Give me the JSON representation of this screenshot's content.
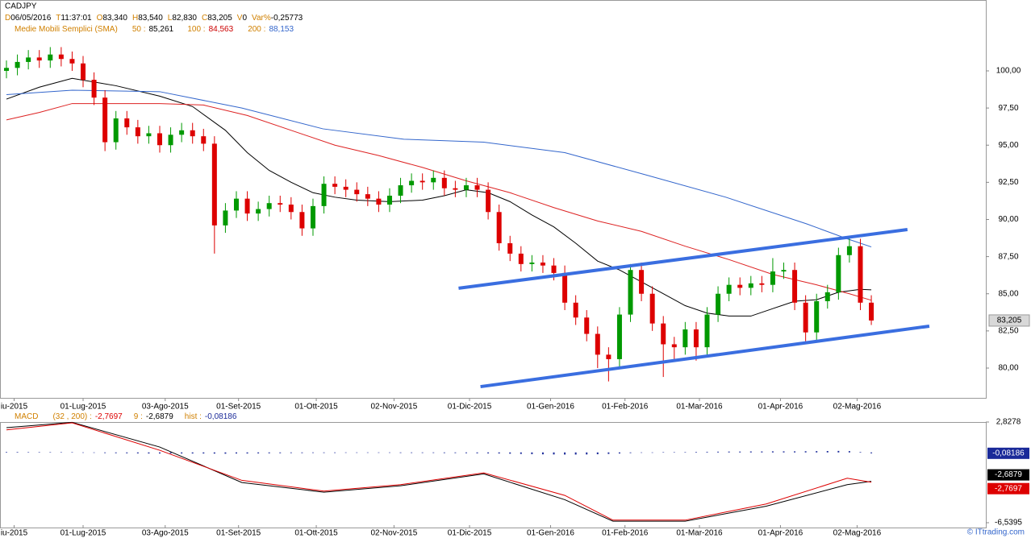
{
  "chart_data": [
    {
      "type": "candlestick",
      "header": {
        "symbol": "CADJPY",
        "quote": [
          {
            "key": "D",
            "value": "06/05/2016"
          },
          {
            "key": "T",
            "value": "11:37:01"
          },
          {
            "key": "O",
            "value": "83,340"
          },
          {
            "key": "H",
            "value": "83,540"
          },
          {
            "key": "L",
            "value": "82,830"
          },
          {
            "key": "C",
            "value": "83,205"
          },
          {
            "key": "V",
            "value": "0"
          },
          {
            "key": "Var%",
            "value": "-0,25773"
          }
        ],
        "sma_title": "Medie Mobili Semplici (SMA)",
        "sma": [
          {
            "key": "50 :",
            "value": "85,261",
            "color": "#000000"
          },
          {
            "key": "100 :",
            "value": "84,563",
            "color": "#cc0000"
          },
          {
            "key": "200 :",
            "value": "88,153",
            "color": "#3366cc"
          }
        ]
      },
      "xlim": [
        -0.59,
        89.46
      ],
      "xticks": [
        {
          "value": 0.7,
          "label": "iu-2015"
        },
        {
          "value": 7.0,
          "label": "01-Lug-2015"
        },
        {
          "value": 14.5,
          "label": "03-Ago-2015"
        },
        {
          "value": 21.2,
          "label": "01-Set-2015"
        },
        {
          "value": 28.3,
          "label": "01-Ott-2015"
        },
        {
          "value": 35.4,
          "label": "02-Nov-2015"
        },
        {
          "value": 42.3,
          "label": "01-Dic-2015"
        },
        {
          "value": 49.7,
          "label": "01-Gen-2016"
        },
        {
          "value": 56.5,
          "label": "01-Feb-2016"
        },
        {
          "value": 63.3,
          "label": "01-Mar-2016"
        },
        {
          "value": 70.7,
          "label": "01-Apr-2016"
        },
        {
          "value": 77.7,
          "label": "02-Mag-2016"
        }
      ],
      "ylim": [
        77.94,
        102.33
      ],
      "yticks": [
        {
          "value": 100,
          "label": "100,00"
        },
        {
          "value": 97.5,
          "label": "97,50"
        },
        {
          "value": 95,
          "label": "95,00"
        },
        {
          "value": 92.5,
          "label": "92,50"
        },
        {
          "value": 90,
          "label": "90,00"
        },
        {
          "value": 87.5,
          "label": "87,50"
        },
        {
          "value": 85,
          "label": "85,00"
        },
        {
          "value": 82.5,
          "label": "82,50"
        },
        {
          "value": 80,
          "label": "80,00"
        }
      ],
      "up_color": "#009900",
      "down_color": "#dd0000",
      "open": [
        100.0,
        100.2,
        100.6,
        100.9,
        100.7,
        101.1,
        100.8,
        100.5,
        99.4,
        98.2,
        95.2,
        96.8,
        96.2,
        95.6,
        95.8,
        95.0,
        95.7,
        96.0,
        95.6,
        95.1,
        89.6,
        90.6,
        91.4,
        90.4,
        90.7,
        91.1,
        91.0,
        90.5,
        89.4,
        90.9,
        92.4,
        92.2,
        92.0,
        91.7,
        91.4,
        91.0,
        91.6,
        92.3,
        92.6,
        92.5,
        92.8,
        92.1,
        92.0,
        92.3,
        92.0,
        90.5,
        88.4,
        87.7,
        87.0,
        87.1,
        86.9,
        86.4,
        84.4,
        83.4,
        82.3,
        80.9,
        80.6,
        83.6,
        86.6,
        85.0,
        83.0,
        81.6,
        81.4,
        82.6,
        81.4,
        83.6,
        85.0,
        85.6,
        85.4,
        85.7,
        85.6,
        86.5,
        86.6,
        84.4,
        82.4,
        84.5,
        85.1,
        87.6,
        88.2,
        84.4
      ],
      "high": [
        100.7,
        101.1,
        101.4,
        101.4,
        101.6,
        101.6,
        101.3,
        101.0,
        99.9,
        98.7,
        97.3,
        97.3,
        96.7,
        96.3,
        96.3,
        96.2,
        96.5,
        96.5,
        96.1,
        95.6,
        91.1,
        91.9,
        91.9,
        91.2,
        91.6,
        91.6,
        91.5,
        91.0,
        91.4,
        92.9,
        92.9,
        92.7,
        92.5,
        92.2,
        91.9,
        92.1,
        92.8,
        93.1,
        93.1,
        93.3,
        93.3,
        92.6,
        92.8,
        92.8,
        92.5,
        91.0,
        88.9,
        88.2,
        87.6,
        87.6,
        87.4,
        86.9,
        84.9,
        83.9,
        82.8,
        81.4,
        84.1,
        87.0,
        87.1,
        85.5,
        83.5,
        82.1,
        83.1,
        83.1,
        84.1,
        85.5,
        86.1,
        86.1,
        86.2,
        86.2,
        87.4,
        87.1,
        87.1,
        84.9,
        85.0,
        85.6,
        88.1,
        88.7,
        88.7,
        84.9
      ],
      "low": [
        99.5,
        99.7,
        100.1,
        100.2,
        100.2,
        100.3,
        100.0,
        98.9,
        97.7,
        94.6,
        94.7,
        95.7,
        95.1,
        95.1,
        94.5,
        94.5,
        95.2,
        95.1,
        94.6,
        87.7,
        89.1,
        90.1,
        89.9,
        89.9,
        90.2,
        90.5,
        90.0,
        88.9,
        88.9,
        90.4,
        91.7,
        91.5,
        91.2,
        90.9,
        90.5,
        90.5,
        91.1,
        91.8,
        92.0,
        92.0,
        91.6,
        91.5,
        91.5,
        91.5,
        90.0,
        87.9,
        87.2,
        86.5,
        86.5,
        86.4,
        85.9,
        83.9,
        82.9,
        81.8,
        80.0,
        79.1,
        80.1,
        83.1,
        84.5,
        82.5,
        79.4,
        80.5,
        80.9,
        80.5,
        80.9,
        83.1,
        84.5,
        84.9,
        84.9,
        85.1,
        85.1,
        86.0,
        83.9,
        81.8,
        81.9,
        84.0,
        84.6,
        87.1,
        83.9,
        82.9
      ],
      "close": [
        100.2,
        100.6,
        100.9,
        100.7,
        101.1,
        100.8,
        100.5,
        99.4,
        98.2,
        95.2,
        96.8,
        96.2,
        95.6,
        95.8,
        95.0,
        95.7,
        96.0,
        95.6,
        95.1,
        89.6,
        90.6,
        91.4,
        90.4,
        90.7,
        91.1,
        91.0,
        90.5,
        89.4,
        90.9,
        92.4,
        92.2,
        92.0,
        91.7,
        91.4,
        91.0,
        91.6,
        92.3,
        92.6,
        92.5,
        92.8,
        92.1,
        92.0,
        92.3,
        92.0,
        90.5,
        88.4,
        87.7,
        87.0,
        87.1,
        86.9,
        86.4,
        84.4,
        83.4,
        82.3,
        80.9,
        80.6,
        83.6,
        86.6,
        85.0,
        83.0,
        81.6,
        81.4,
        82.6,
        81.4,
        83.6,
        85.0,
        85.6,
        85.4,
        85.7,
        85.6,
        86.5,
        86.6,
        84.4,
        82.4,
        84.5,
        85.1,
        87.6,
        88.2,
        84.4,
        83.2
      ],
      "series": [
        {
          "color": "#000000",
          "x": [
            0,
            3,
            6,
            10,
            14,
            17,
            20,
            22,
            24,
            26,
            28,
            30,
            32,
            35,
            38,
            40,
            42,
            44,
            46,
            48,
            50,
            52,
            54,
            56,
            58,
            60,
            62,
            64,
            66,
            68,
            70,
            72,
            74,
            76,
            78,
            79
          ],
          "values": [
            98.1,
            98.9,
            99.5,
            99.0,
            98.3,
            97.6,
            96.0,
            94.5,
            93.3,
            92.5,
            91.8,
            91.5,
            91.3,
            91.2,
            91.3,
            91.6,
            92.0,
            91.8,
            91.2,
            90.3,
            89.5,
            88.4,
            87.2,
            86.6,
            85.8,
            85.0,
            84.2,
            83.7,
            83.5,
            83.5,
            84.0,
            84.5,
            84.6,
            85.1,
            85.3,
            85.261
          ]
        },
        {
          "color": "#dd2222",
          "x": [
            0,
            3,
            6,
            10,
            14,
            18,
            22,
            26,
            30,
            34,
            38,
            42,
            46,
            50,
            54,
            58,
            62,
            66,
            70,
            74,
            77,
            79
          ],
          "values": [
            96.7,
            97.2,
            97.8,
            97.8,
            97.8,
            97.7,
            97.0,
            96.0,
            95.0,
            94.3,
            93.5,
            92.6,
            91.8,
            90.8,
            89.9,
            89.2,
            88.2,
            87.3,
            86.3,
            85.6,
            85.0,
            84.563
          ]
        },
        {
          "color": "#3366cc",
          "x": [
            0,
            6,
            14,
            21.5,
            28.9,
            36.3,
            43.6,
            51,
            58.4,
            65.7,
            73.1,
            76.8,
            79
          ],
          "values": [
            98.4,
            98.7,
            98.6,
            97.5,
            96.1,
            95.4,
            95.2,
            94.5,
            93.0,
            91.5,
            89.7,
            88.7,
            88.153
          ]
        }
      ],
      "trendlines": {
        "color": "#3a6ee0",
        "lines": [
          {
            "x": [
              41.3,
              82.3
            ],
            "y": [
              85.37,
              89.32
            ]
          },
          {
            "x": [
              43.3,
              84.3
            ],
            "y": [
              78.75,
              82.82
            ]
          }
        ]
      }
    },
    {
      "type": "macd",
      "legend": {
        "name": "MACD",
        "params": "(32 , 200) :",
        "macd": "-2,7697",
        "signal_key": "9 :",
        "signal": "-2,6879",
        "hist_key": "hist :",
        "hist": "-0,08186"
      },
      "xlim": [
        -0.59,
        89.46
      ],
      "xticks": [
        {
          "value": 0.7,
          "label": "iu-2015"
        },
        {
          "value": 7.0,
          "label": "01-Lug-2015"
        },
        {
          "value": 14.5,
          "label": "03-Ago-2015"
        },
        {
          "value": 21.2,
          "label": "01-Set-2015"
        },
        {
          "value": 28.3,
          "label": "01-Ott-2015"
        },
        {
          "value": 35.4,
          "label": "02-Nov-2015"
        },
        {
          "value": 42.3,
          "label": "01-Dic-2015"
        },
        {
          "value": 49.7,
          "label": "01-Gen-2016"
        },
        {
          "value": 56.5,
          "label": "01-Feb-2016"
        },
        {
          "value": 63.3,
          "label": "01-Mar-2016"
        },
        {
          "value": 70.7,
          "label": "01-Apr-2016"
        },
        {
          "value": 77.7,
          "label": "02-Mag-2016"
        }
      ],
      "ylim": [
        -6.5395,
        2.8278
      ],
      "yticks": [
        {
          "value": 2.8278,
          "label": "2,8278"
        },
        {
          "value": -6.5395,
          "label": "-6,5395"
        }
      ],
      "hist_color": "#1a2a99",
      "hist": [
        0.05,
        0.05,
        0.04,
        0.04,
        0.03,
        0.03,
        0.02,
        -0.02,
        -0.04,
        -0.06,
        -0.07,
        -0.08,
        -0.09,
        -0.1,
        -0.1,
        -0.1,
        -0.1,
        -0.1,
        -0.1,
        -0.11,
        -0.12,
        -0.1,
        -0.1,
        -0.09,
        -0.08,
        -0.07,
        -0.06,
        -0.06,
        -0.05,
        -0.05,
        -0.05,
        -0.04,
        -0.04,
        -0.04,
        -0.04,
        -0.04,
        -0.05,
        -0.05,
        -0.05,
        -0.05,
        -0.06,
        -0.06,
        -0.07,
        -0.08,
        -0.09,
        -0.1,
        -0.12,
        -0.14,
        -0.16,
        -0.18,
        -0.19,
        -0.2,
        -0.2,
        -0.19,
        -0.17,
        -0.14,
        -0.1,
        -0.06,
        -0.02,
        0.0,
        0.02,
        0.03,
        0.04,
        0.05,
        0.06,
        0.07,
        0.08,
        0.08,
        0.09,
        0.09,
        0.1,
        0.1,
        0.1,
        0.11,
        0.12,
        0.13,
        0.14,
        0.12,
        0.05,
        -0.08186
      ],
      "series": [
        {
          "color": "#000000",
          "x": [
            0,
            6,
            14,
            21.5,
            29,
            36,
            43.6,
            51,
            55.4,
            62,
            69.4,
            76.8,
            79
          ],
          "values": [
            2.3,
            2.8,
            0.5,
            -2.8,
            -3.7,
            -3.1,
            -2.0,
            -4.4,
            -6.4,
            -6.4,
            -5.0,
            -3.0,
            -2.6879
          ]
        },
        {
          "color": "#dd0000",
          "x": [
            0,
            6,
            14,
            21.5,
            29,
            36,
            43.6,
            51,
            55.4,
            62,
            69.4,
            76.8,
            79
          ],
          "values": [
            2.1,
            2.75,
            0.2,
            -2.6,
            -3.6,
            -3.0,
            -1.9,
            -4.0,
            -6.3,
            -6.3,
            -4.8,
            -2.4,
            -2.7697
          ]
        }
      ]
    }
  ],
  "footer": {
    "watermark": "© ITtrading.com"
  }
}
